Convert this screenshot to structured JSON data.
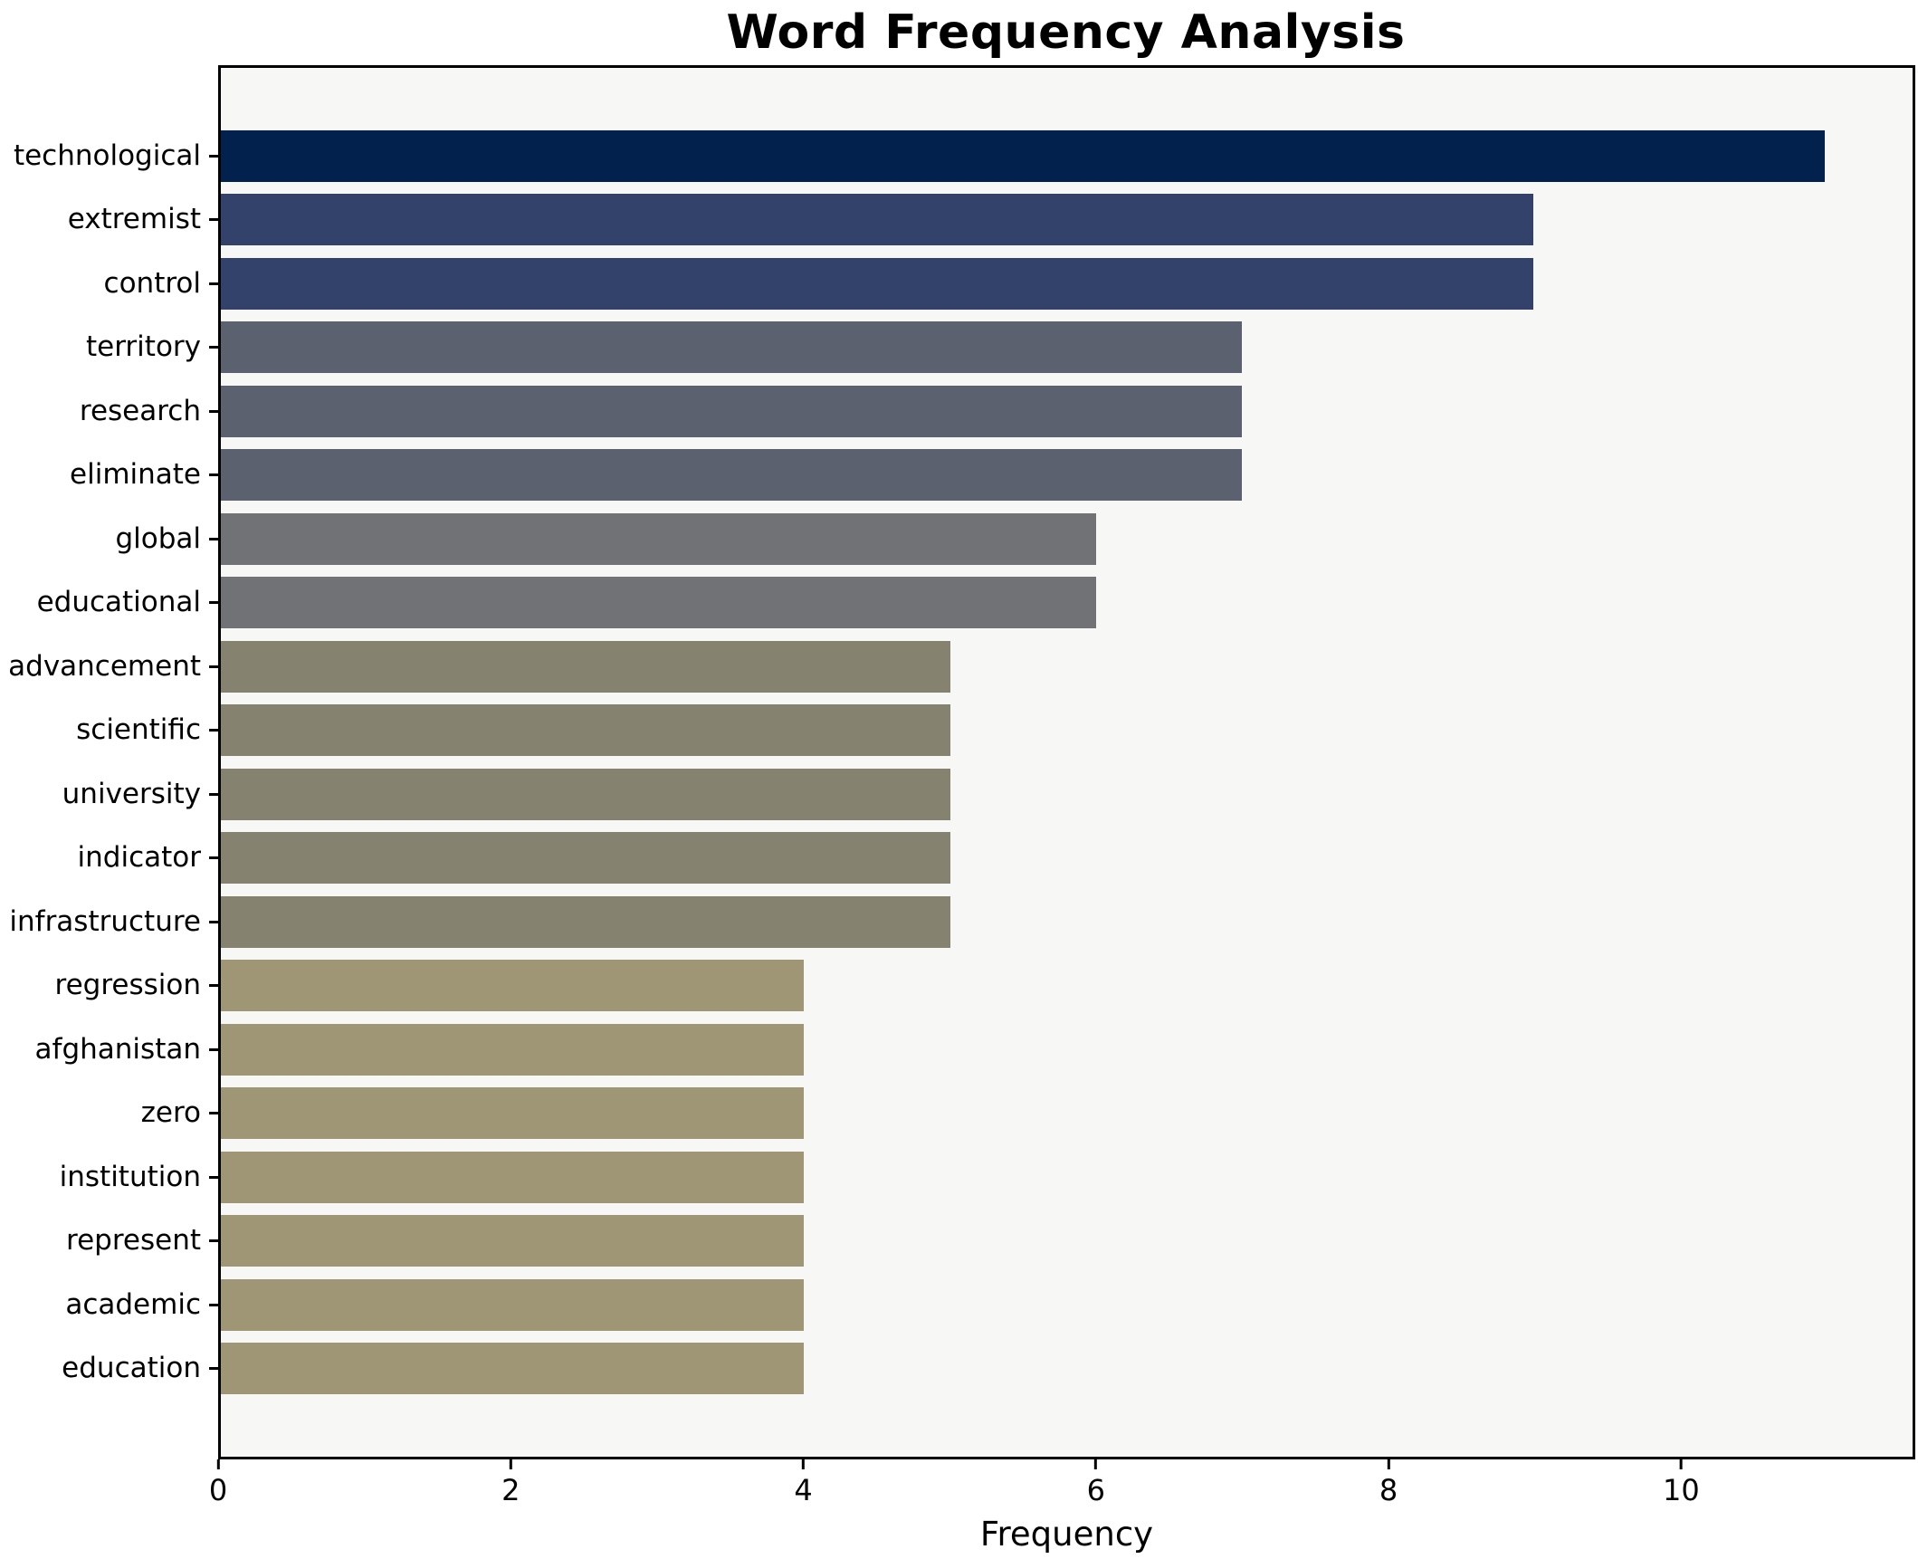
{
  "chart_data": {
    "type": "bar",
    "orientation": "horizontal",
    "title": "Word Frequency Analysis",
    "xlabel": "Frequency",
    "ylabel": "",
    "categories": [
      "technological",
      "extremist",
      "control",
      "territory",
      "research",
      "eliminate",
      "global",
      "educational",
      "advancement",
      "scientific",
      "university",
      "indicator",
      "infrastructure",
      "regression",
      "afghanistan",
      "zero",
      "institution",
      "represent",
      "academic",
      "education"
    ],
    "values": [
      11,
      9,
      9,
      7,
      7,
      7,
      6,
      6,
      5,
      5,
      5,
      5,
      5,
      4,
      4,
      4,
      4,
      4,
      4,
      4
    ],
    "bar_colors": [
      "#02224d",
      "#32426b",
      "#32426b",
      "#5c6170",
      "#5c6170",
      "#5c6170",
      "#717276",
      "#717276",
      "#858370",
      "#858370",
      "#858370",
      "#858370",
      "#858370",
      "#9f9675",
      "#9f9675",
      "#9f9675",
      "#9f9675",
      "#9f9675",
      "#9f9675",
      "#9f9675"
    ],
    "xlim": [
      0,
      11.6
    ],
    "xticks": [
      0,
      2,
      4,
      6,
      8,
      10
    ],
    "grid": false,
    "legend_position": "none",
    "plot_bg": "#f7f7f6",
    "fig_bg": "#ffffff",
    "axis_color": "#000000"
  }
}
